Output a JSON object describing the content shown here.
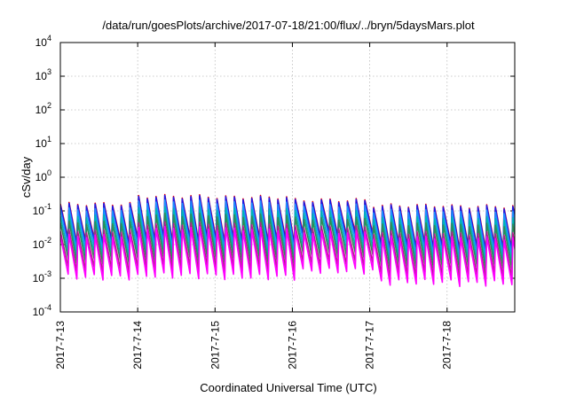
{
  "chart_data": {
    "type": "line",
    "title": "/data/run/goesPlots/archive/2017-07-18/21:00/flux/../bryn/5daysMars.plot",
    "xlabel": "Coordinated Universal Time (UTC)",
    "ylabel": "cSv/day",
    "yscale": "log",
    "ylim": [
      0.0001,
      10000
    ],
    "xlim": [
      "2017-07-13",
      "2017-07-18 21:00"
    ],
    "x_ticks": [
      "2017-7-13",
      "2017-7-14",
      "2017-7-15",
      "2017-7-16",
      "2017-7-17",
      "2017-7-18"
    ],
    "y_ticks": [
      {
        "base": "10",
        "exp": "-4"
      },
      {
        "base": "10",
        "exp": "-3"
      },
      {
        "base": "10",
        "exp": "-2"
      },
      {
        "base": "10",
        "exp": "-1"
      },
      {
        "base": "10",
        "exp": "0"
      },
      {
        "base": "10",
        "exp": "1"
      },
      {
        "base": "10",
        "exp": "2"
      },
      {
        "base": "10",
        "exp": "3"
      },
      {
        "base": "10",
        "exp": "4"
      }
    ],
    "grid": true,
    "legend": "none",
    "sawtooth": {
      "cycle_hours": 2.7,
      "day_peak_factor": [
        1.0,
        1.7,
        1.6,
        1.3,
        0.9,
        0.85
      ],
      "day_trough_factor": [
        1.0,
        1.1,
        1.0,
        1.5,
        0.7,
        0.65
      ]
    },
    "series": [
      {
        "color": "#e0001a",
        "peak": 0.16,
        "trough": 0.013
      },
      {
        "color": "#1a1ae6",
        "peak": 0.15,
        "trough": 0.011
      },
      {
        "color": "#1e90ff",
        "peak": 0.11,
        "trough": 0.008
      },
      {
        "color": "#00b4b4",
        "peak": 0.07,
        "trough": 0.005
      },
      {
        "color": "#2e8b57",
        "peak": 0.045,
        "trough": 0.0032
      },
      {
        "color": "#b0208a",
        "peak": 0.025,
        "trough": 0.0018
      },
      {
        "color": "#ff00ff",
        "peak": 0.018,
        "trough": 0.0011
      }
    ]
  }
}
